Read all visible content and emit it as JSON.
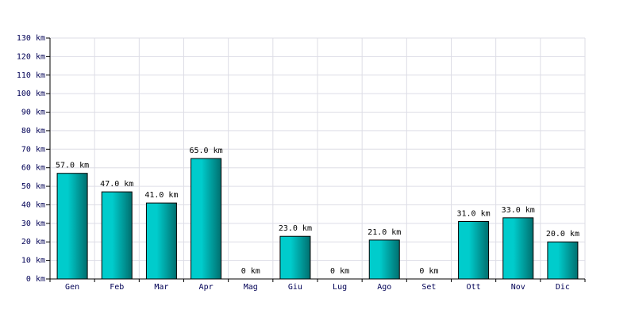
{
  "chart_data": {
    "type": "bar",
    "categories": [
      "Gen",
      "Feb",
      "Mar",
      "Apr",
      "Mag",
      "Giu",
      "Lug",
      "Ago",
      "Set",
      "Ott",
      "Nov",
      "Dic"
    ],
    "values": [
      57,
      47,
      41,
      65,
      0,
      23,
      0,
      21,
      0,
      31,
      33,
      20
    ],
    "value_labels": [
      "57.0 km",
      "47.0 km",
      "41.0 km",
      "65.0 km",
      "0 km",
      "23.0 km",
      "0 km",
      "21.0 km",
      "0 km",
      "31.0 km",
      "33.0 km",
      "20.0 km"
    ],
    "color": "#00cccc",
    "ylim": [
      0,
      130
    ],
    "yticks": [
      {
        "value": 0,
        "label": "0 km"
      },
      {
        "value": 10,
        "label": "10 km"
      },
      {
        "value": 20,
        "label": "20 km"
      },
      {
        "value": 30,
        "label": "30 km"
      },
      {
        "value": 40,
        "label": "40 km"
      },
      {
        "value": 50,
        "label": "50 km"
      },
      {
        "value": 60,
        "label": "60 km"
      },
      {
        "value": 70,
        "label": "70 km"
      },
      {
        "value": 80,
        "label": "80 km"
      },
      {
        "value": 90,
        "label": "90 km"
      },
      {
        "value": 100,
        "label": "100 km"
      },
      {
        "value": 110,
        "label": "110 km"
      },
      {
        "value": 120,
        "label": "120 km"
      },
      {
        "value": 130,
        "label": "130 km"
      }
    ],
    "grid": true
  }
}
